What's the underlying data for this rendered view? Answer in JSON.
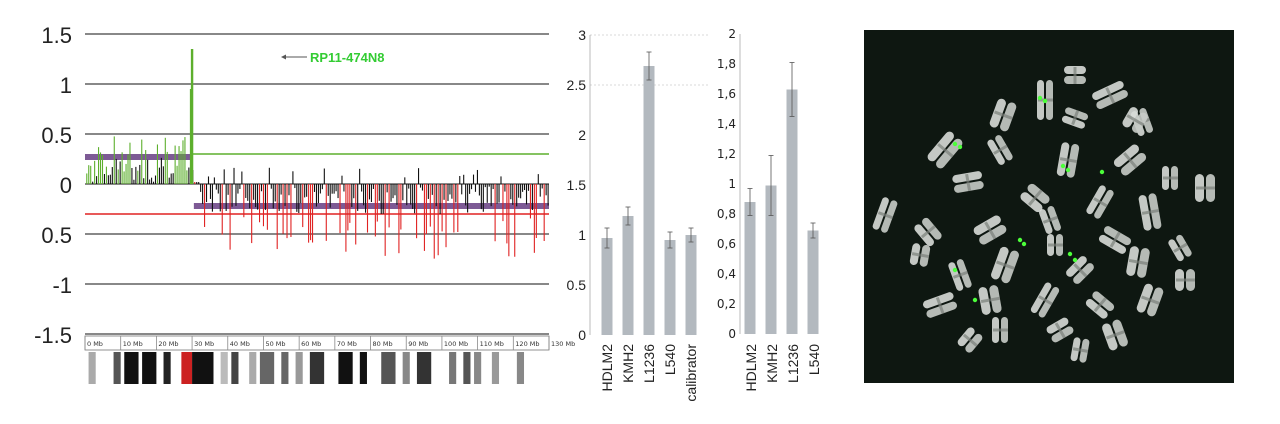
{
  "colors": {
    "gain": "#5daf2d",
    "loss": "#e02222",
    "neutral": "#111111",
    "segment": "#7d5a95",
    "bar": "#b3b9bf",
    "error": "#555555",
    "annotation": "#33cc33",
    "fish_bg": "#0e1711"
  },
  "chart_data": [
    {
      "id": "acgh",
      "type": "bar",
      "title": "",
      "yticks": [
        "1.5",
        "1",
        "0.5",
        "0",
        "0.5",
        "-1",
        "-1.5"
      ],
      "ylim": [
        -1.5,
        1.5
      ],
      "gridlines": [
        1.5,
        1.0,
        0.5,
        0.0,
        -0.5,
        -1.0,
        -1.5
      ],
      "gain_threshold": 0.3,
      "loss_threshold": -0.3,
      "annotation": {
        "text": "RP11-474N8",
        "x_mb": 30,
        "y": 1.35
      },
      "segments": [
        {
          "x0": 0,
          "x1": 30,
          "value": 0.27,
          "color": "segment"
        },
        {
          "x0": 30.5,
          "x1": 130,
          "value": -0.22,
          "color": "segment"
        }
      ],
      "band_labels": [
        "0 Mb",
        "10 Mb",
        "20 Mb",
        "30 Mb",
        "40 Mb",
        "50 Mb",
        "60 Mb",
        "70 Mb",
        "80 Mb",
        "90 Mb",
        "100 Mb",
        "110 Mb",
        "120 Mb",
        "130 Mb"
      ],
      "bands": [
        {
          "x0": 1,
          "x1": 3,
          "shade": "#aaaaaa"
        },
        {
          "x0": 8,
          "x1": 10,
          "shade": "#555555"
        },
        {
          "x0": 11,
          "x1": 15,
          "shade": "#111111"
        },
        {
          "x0": 16,
          "x1": 20,
          "shade": "#111111"
        },
        {
          "x0": 22,
          "x1": 24,
          "shade": "#222222"
        },
        {
          "x0": 27,
          "x1": 30,
          "shade": "#cc2222"
        },
        {
          "x0": 30,
          "x1": 36,
          "shade": "#111111"
        },
        {
          "x0": 38,
          "x1": 40,
          "shade": "#bbbbbb"
        },
        {
          "x0": 41,
          "x1": 43,
          "shade": "#444444"
        },
        {
          "x0": 46,
          "x1": 48,
          "shade": "#aaaaaa"
        },
        {
          "x0": 49,
          "x1": 53,
          "shade": "#666666"
        },
        {
          "x0": 55,
          "x1": 57,
          "shade": "#666666"
        },
        {
          "x0": 59,
          "x1": 61,
          "shade": "#999999"
        },
        {
          "x0": 63,
          "x1": 67,
          "shade": "#333333"
        },
        {
          "x0": 71,
          "x1": 75,
          "shade": "#111111"
        },
        {
          "x0": 77,
          "x1": 79,
          "shade": "#111111"
        },
        {
          "x0": 83,
          "x1": 87,
          "shade": "#555555"
        },
        {
          "x0": 89,
          "x1": 91,
          "shade": "#888888"
        },
        {
          "x0": 93,
          "x1": 97,
          "shade": "#333333"
        },
        {
          "x0": 102,
          "x1": 104,
          "shade": "#777777"
        },
        {
          "x0": 106,
          "x1": 108,
          "shade": "#555555"
        },
        {
          "x0": 109,
          "x1": 111,
          "shade": "#888888"
        },
        {
          "x0": 114,
          "x1": 116,
          "shade": "#999999"
        },
        {
          "x0": 121,
          "x1": 123,
          "shade": "#888888"
        }
      ]
    },
    {
      "id": "qpcr1",
      "type": "bar",
      "categories": [
        "HDLM2",
        "KMH2",
        "L1236",
        "L540",
        "calibrator"
      ],
      "values": [
        0.97,
        1.19,
        2.69,
        0.95,
        1.0
      ],
      "errors": [
        0.1,
        0.09,
        0.14,
        0.08,
        0.07
      ],
      "yticks": [
        "3",
        "2.5",
        "2",
        "1.5",
        "1",
        "0.5",
        "0"
      ],
      "ylim": [
        0,
        3
      ]
    },
    {
      "id": "qpcr2",
      "type": "bar",
      "categories": [
        "HDLM2",
        "KMH2",
        "L1236",
        "L540"
      ],
      "values": [
        0.88,
        0.99,
        1.63,
        0.69
      ],
      "errors": [
        0.09,
        0.2,
        0.18,
        0.05
      ],
      "yticks": [
        "2",
        "1,8",
        "1,6",
        "1,4",
        "1,2",
        "1",
        "0,8",
        "0,6",
        "0,4",
        "0,2",
        "0"
      ],
      "ylim": [
        0,
        2
      ]
    }
  ]
}
